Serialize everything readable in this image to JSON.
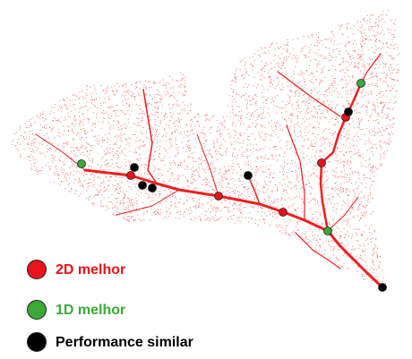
{
  "legend": {
    "items": [
      {
        "label": "2D melhor",
        "color": "#e8141b"
      },
      {
        "label": "1D melhor",
        "color": "#3aa935"
      },
      {
        "label": "Performance similar",
        "color": "#000000"
      }
    ]
  }
}
